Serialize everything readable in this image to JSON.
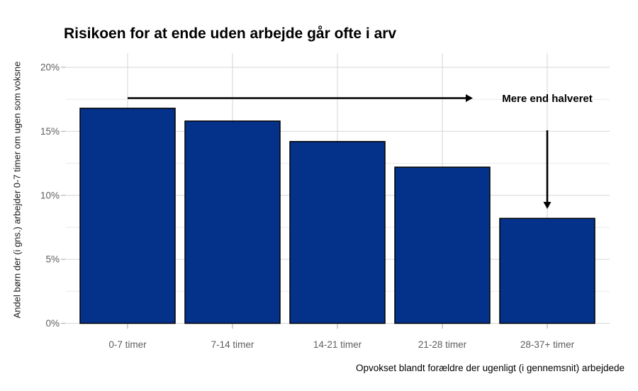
{
  "chart_data": {
    "type": "bar",
    "title": "Risikoen for at ende uden arbejde går ofte i arv",
    "ylabel": "Andel børn der (i gns.) arbejder 0-7 timer om ugen som voksne",
    "xlabel": "Opvokset blandt forældre der ugenligt (i gennemsnit) arbejdede",
    "categories": [
      "0-7 timer",
      "7-14 timer",
      "14-21 timer",
      "21-28 timer",
      "28-37+ timer"
    ],
    "values": [
      16.8,
      15.8,
      14.2,
      12.2,
      8.2
    ],
    "unit": "%",
    "ylim": [
      0,
      20
    ],
    "yticks": [
      0,
      5,
      10,
      15,
      20
    ],
    "ytick_labels": [
      "0%",
      "5%",
      "10%",
      "15%",
      "20%"
    ],
    "minor_yticks": [
      2.5,
      7.5,
      12.5,
      17.5
    ],
    "grid": {
      "horizontal": "major and minor lines",
      "vertical": "major lines at category centers"
    },
    "legend": "none",
    "annotation": {
      "label": "Mere end halveret",
      "from_category": "0-7 timer",
      "to_category": "28-37+ timer"
    }
  },
  "colors": {
    "background": "#ffffff",
    "bar_fill": "#04318a",
    "bar_stroke": "#000000",
    "grid_major": "#d6d6d6",
    "grid_minor": "#eaeaea",
    "tick_mark": "#b3b3b3",
    "axis_text": "#5e5e5e",
    "title_text": "#000000",
    "annotation": "#000000"
  }
}
